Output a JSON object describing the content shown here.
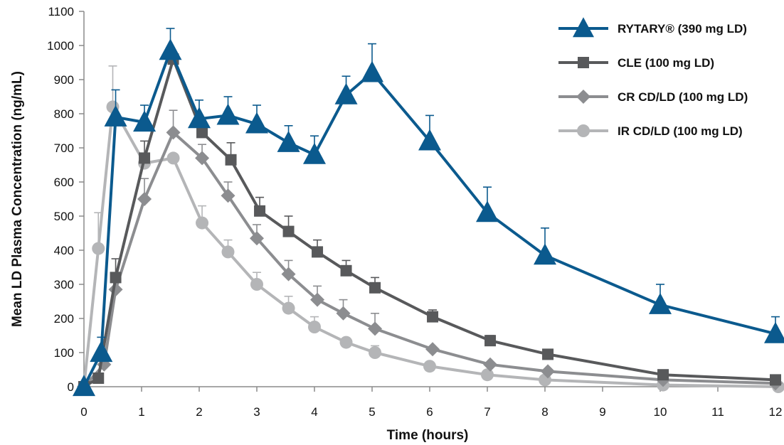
{
  "chart_data": {
    "type": "line",
    "title": "",
    "xlabel": "Time (hours)",
    "ylabel": "Mean LD Plasma Concentration (ng/mL)",
    "xlim": [
      0,
      12
    ],
    "ylim": [
      0,
      1100
    ],
    "x_ticks": [
      0,
      1,
      2,
      3,
      4,
      5,
      6,
      7,
      8,
      9,
      10,
      11,
      12
    ],
    "y_ticks": [
      0,
      100,
      200,
      300,
      400,
      500,
      600,
      700,
      800,
      900,
      1000,
      1100
    ],
    "grid": false,
    "legend_position": "top-right",
    "series": [
      {
        "name": "RYTARY® (390 mg LD)",
        "color": "#0b5a8e",
        "marker": "triangle",
        "x": [
          0,
          0.3,
          0.55,
          1.05,
          1.5,
          2,
          2.5,
          3,
          3.55,
          4,
          4.55,
          5,
          6,
          7,
          8,
          10,
          12
        ],
        "values": [
          0,
          100,
          790,
          775,
          985,
          785,
          795,
          770,
          715,
          680,
          855,
          920,
          720,
          510,
          385,
          240,
          155
        ],
        "errors": [
          0,
          45,
          80,
          50,
          65,
          55,
          55,
          55,
          50,
          55,
          55,
          85,
          75,
          75,
          80,
          60,
          50
        ]
      },
      {
        "name": "CLE (100 mg LD)",
        "color": "#58595b",
        "marker": "square",
        "x": [
          0,
          0.25,
          0.55,
          1.05,
          1.55,
          2.05,
          2.55,
          3.05,
          3.55,
          4.05,
          4.55,
          5.05,
          6.05,
          7.05,
          8.05,
          10.05,
          12
        ],
        "values": [
          0,
          25,
          320,
          670,
          960,
          745,
          665,
          515,
          455,
          395,
          340,
          290,
          205,
          135,
          95,
          35,
          20
        ],
        "errors": [
          0,
          5,
          55,
          50,
          0,
          0,
          50,
          40,
          45,
          35,
          30,
          30,
          20,
          15,
          0,
          0,
          0
        ]
      },
      {
        "name": "CR CD/LD (100 mg LD)",
        "color": "#8c8d90",
        "marker": "diamond",
        "x": [
          0,
          0.35,
          0.55,
          1.05,
          1.55,
          2.05,
          2.5,
          3,
          3.55,
          4.05,
          4.5,
          5.05,
          6.05,
          7.05,
          8.05,
          10.05,
          12
        ],
        "values": [
          0,
          65,
          285,
          550,
          745,
          670,
          560,
          435,
          330,
          255,
          215,
          170,
          110,
          65,
          45,
          20,
          10
        ],
        "errors": [
          0,
          0,
          0,
          60,
          65,
          40,
          40,
          40,
          40,
          40,
          40,
          45,
          0,
          0,
          0,
          0,
          0
        ]
      },
      {
        "name": "IR CD/LD (100 mg LD)",
        "color": "#b4b5b7",
        "marker": "circle",
        "x": [
          0,
          0.25,
          0.5,
          1.05,
          1.55,
          2.05,
          2.5,
          3,
          3.55,
          4,
          4.55,
          5.05,
          6,
          7,
          8,
          10.05,
          12.05
        ],
        "values": [
          0,
          405,
          820,
          655,
          670,
          480,
          395,
          300,
          230,
          175,
          130,
          100,
          60,
          35,
          20,
          5,
          0
        ],
        "errors": [
          0,
          105,
          120,
          0,
          0,
          50,
          35,
          35,
          35,
          30,
          0,
          20,
          0,
          0,
          0,
          0,
          0
        ]
      }
    ]
  }
}
